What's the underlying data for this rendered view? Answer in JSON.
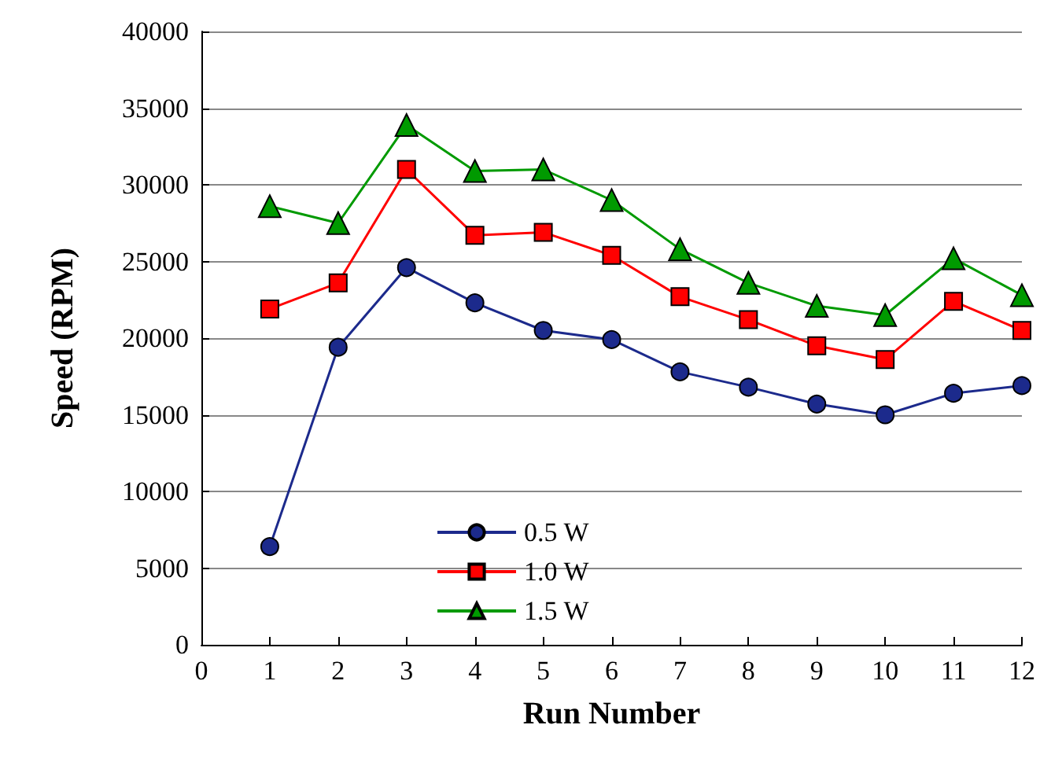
{
  "chart_data": {
    "type": "line",
    "xlabel": "Run Number",
    "ylabel": "Speed (RPM)",
    "x": [
      1,
      2,
      3,
      4,
      5,
      6,
      7,
      8,
      9,
      10,
      11,
      12
    ],
    "xlim": [
      0,
      12
    ],
    "xticks": [
      0,
      1,
      2,
      3,
      4,
      5,
      6,
      7,
      8,
      9,
      10,
      11,
      12
    ],
    "ylim": [
      0,
      40000
    ],
    "yticks": [
      0,
      5000,
      10000,
      15000,
      20000,
      25000,
      30000,
      35000,
      40000
    ],
    "grid": "y",
    "legend": "bottom left",
    "series": [
      {
        "name": "0.5 W",
        "color": "#1c2a8c",
        "marker": "circle",
        "values": [
          6400,
          19400,
          24600,
          22300,
          20500,
          19900,
          17800,
          16800,
          15700,
          15000,
          16400,
          16900
        ]
      },
      {
        "name": "1.0 W",
        "color": "#ff0000",
        "marker": "square",
        "values": [
          21900,
          23600,
          31000,
          26700,
          26900,
          25400,
          22700,
          21200,
          19500,
          18600,
          22400,
          20500
        ]
      },
      {
        "name": "1.5 W",
        "color": "#009a00",
        "marker": "triangle",
        "values": [
          28600,
          27500,
          33900,
          30900,
          31000,
          29000,
          25800,
          23600,
          22100,
          21500,
          25200,
          22800
        ]
      }
    ]
  }
}
